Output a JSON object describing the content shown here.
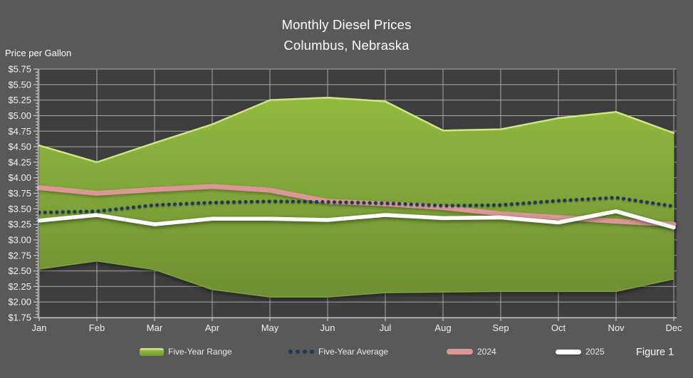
{
  "title": {
    "line1": "Monthly Diesel Prices",
    "line2": "Columbus, Nebraska"
  },
  "axis": {
    "y_label": "Price per Gallon",
    "y_tick_prefix": "$",
    "y_min": 1.75,
    "y_max": 5.75,
    "y_step": 0.25,
    "y_minor_step": 0.05
  },
  "figure_label": "Figure 1",
  "legend": {
    "items": [
      {
        "label": "Five-Year Range"
      },
      {
        "label": "Five-Year Average"
      },
      {
        "label": "2024"
      },
      {
        "label": "2025"
      }
    ]
  },
  "colors": {
    "page_bg": "#595959",
    "plot_bg": "#3e3e3e",
    "grid": "#a8a8a8",
    "axis": "#c9c9c9",
    "tick_text": "#f2f2f2",
    "band_top": "#91ba40",
    "band_bottom": "#6e8f33",
    "band_edge": "#d0e684",
    "avg_dot": "#1e3a56",
    "line_2024": "#d99795",
    "line_2025": "#ffffff"
  },
  "chart_data": {
    "type": "area",
    "title": "Monthly Diesel Prices — Columbus, Nebraska",
    "xlabel": "",
    "ylabel": "Price per Gallon",
    "ylim": [
      1.75,
      5.75
    ],
    "ytick_step": 0.25,
    "grid": true,
    "legend_position": "bottom",
    "categories": [
      "Jan",
      "Feb",
      "Mar",
      "Apr",
      "May",
      "Jun",
      "Jul",
      "Aug",
      "Sep",
      "Oct",
      "Nov",
      "Dec"
    ],
    "series": [
      {
        "name": "Five-Year Range (high)",
        "role": "band-high",
        "color": "#91ba40",
        "values": [
          4.52,
          4.25,
          4.56,
          4.86,
          5.25,
          5.29,
          5.23,
          4.76,
          4.78,
          4.96,
          5.06,
          4.72
        ]
      },
      {
        "name": "Five-Year Range (low)",
        "role": "band-low",
        "color": "#6e8f33",
        "values": [
          2.53,
          2.66,
          2.52,
          2.2,
          2.08,
          2.08,
          2.15,
          2.16,
          2.17,
          2.17,
          2.17,
          2.37
        ]
      },
      {
        "name": "Five-Year Average",
        "role": "dotted-line",
        "color": "#1e3a56",
        "values": [
          3.44,
          3.46,
          3.56,
          3.6,
          3.62,
          3.61,
          3.59,
          3.55,
          3.56,
          3.63,
          3.68,
          3.54
        ]
      },
      {
        "name": "2024",
        "role": "line",
        "color": "#d99795",
        "values": [
          3.84,
          3.75,
          3.81,
          3.86,
          3.8,
          3.62,
          3.58,
          3.52,
          3.42,
          3.36,
          3.3,
          3.25
        ]
      },
      {
        "name": "2025",
        "role": "line",
        "color": "#ffffff",
        "values": [
          3.31,
          3.4,
          3.25,
          3.34,
          3.34,
          3.32,
          3.4,
          3.35,
          3.36,
          3.28,
          3.46,
          3.2
        ]
      }
    ]
  }
}
